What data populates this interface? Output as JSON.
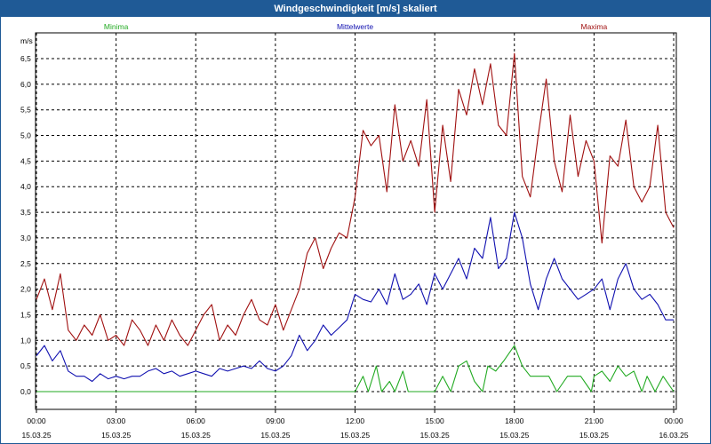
{
  "window": {
    "title": "Windgeschwindigkeit [m/s] skaliert"
  },
  "chart_data": {
    "type": "line",
    "title": "Windgeschwindigkeit [m/s] skaliert",
    "ylabel": "m/s",
    "ylim": [
      -0.2,
      6.8
    ],
    "xlim": [
      0,
      24
    ],
    "grid": true,
    "legend_placement": "top",
    "y_ticks": [
      "0,0",
      "0,5",
      "1,0",
      "1,5",
      "2,0",
      "2,5",
      "3,0",
      "3,5",
      "4,0",
      "4,5",
      "5,0",
      "5,5",
      "6,0",
      "6,5"
    ],
    "x_ticks": [
      {
        "time": "00:00",
        "date": "15.03.25"
      },
      {
        "time": "03:00",
        "date": "15.03.25"
      },
      {
        "time": "06:00",
        "date": "15.03.25"
      },
      {
        "time": "09:00",
        "date": "15.03.25"
      },
      {
        "time": "12:00",
        "date": "15.03.25"
      },
      {
        "time": "15:00",
        "date": "15.03.25"
      },
      {
        "time": "18:00",
        "date": "15.03.25"
      },
      {
        "time": "21:00",
        "date": "15.03.25"
      },
      {
        "time": "00:00",
        "date": "16.03.25"
      }
    ],
    "series": [
      {
        "name": "Minima",
        "color": "#22aa22",
        "x": [
          0,
          12,
          12.3,
          12.5,
          12.8,
          13,
          13.3,
          13.5,
          13.8,
          14,
          14.3,
          14.6,
          15,
          15.3,
          15.6,
          15.9,
          16.2,
          16.5,
          16.8,
          17,
          17.3,
          17.6,
          18,
          18.3,
          18.6,
          19,
          19.3,
          19.6,
          20,
          20.5,
          20.9,
          21,
          21.3,
          21.6,
          21.9,
          22.2,
          22.5,
          22.8,
          23,
          23.3,
          23.6,
          24
        ],
        "values": [
          0,
          0,
          0.3,
          0,
          0.5,
          0,
          0.2,
          0,
          0.4,
          0,
          0,
          0,
          0,
          0.3,
          0,
          0.5,
          0.6,
          0.2,
          0,
          0.5,
          0.4,
          0.6,
          0.9,
          0.5,
          0.3,
          0.3,
          0.3,
          0,
          0.3,
          0.3,
          0,
          0.3,
          0.4,
          0.2,
          0.5,
          0.3,
          0.4,
          0,
          0.3,
          0,
          0.3,
          0
        ]
      },
      {
        "name": "Mittelwerte",
        "color": "#1010b0",
        "x": [
          0,
          0.3,
          0.6,
          0.9,
          1.2,
          1.5,
          1.8,
          2.1,
          2.4,
          2.7,
          3,
          3.3,
          3.6,
          3.9,
          4.2,
          4.5,
          4.8,
          5.1,
          5.4,
          5.7,
          6,
          6.3,
          6.6,
          6.9,
          7.2,
          7.5,
          7.8,
          8.1,
          8.4,
          8.7,
          9,
          9.3,
          9.6,
          9.9,
          10.2,
          10.5,
          10.8,
          11.1,
          11.4,
          11.7,
          12,
          12.3,
          12.6,
          12.9,
          13.2,
          13.5,
          13.8,
          14.1,
          14.4,
          14.7,
          15,
          15.3,
          15.6,
          15.9,
          16.2,
          16.5,
          16.8,
          17.1,
          17.4,
          17.7,
          18,
          18.3,
          18.6,
          18.9,
          19.2,
          19.5,
          19.8,
          20.1,
          20.4,
          20.7,
          21,
          21.3,
          21.6,
          21.9,
          22.2,
          22.5,
          22.8,
          23.1,
          23.4,
          23.7,
          24
        ],
        "values": [
          0.7,
          0.9,
          0.6,
          0.8,
          0.4,
          0.3,
          0.3,
          0.2,
          0.35,
          0.25,
          0.3,
          0.25,
          0.3,
          0.3,
          0.4,
          0.45,
          0.35,
          0.4,
          0.3,
          0.35,
          0.4,
          0.35,
          0.3,
          0.45,
          0.4,
          0.45,
          0.5,
          0.45,
          0.6,
          0.45,
          0.4,
          0.5,
          0.7,
          1.1,
          0.8,
          1.0,
          1.3,
          1.1,
          1.25,
          1.4,
          1.9,
          1.8,
          1.75,
          2.0,
          1.7,
          2.3,
          1.8,
          1.9,
          2.1,
          1.7,
          2.3,
          2.0,
          2.3,
          2.6,
          2.2,
          2.8,
          2.6,
          3.4,
          2.4,
          2.6,
          3.5,
          3.0,
          2.1,
          1.6,
          2.2,
          2.6,
          2.2,
          2.0,
          1.8,
          1.9,
          2.0,
          2.2,
          1.6,
          2.2,
          2.5,
          2.0,
          1.8,
          1.9,
          1.7,
          1.4,
          1.4
        ]
      },
      {
        "name": "Maxima",
        "color": "#a01010",
        "x": [
          0,
          0.3,
          0.6,
          0.9,
          1.2,
          1.5,
          1.8,
          2.1,
          2.4,
          2.7,
          3,
          3.3,
          3.6,
          3.9,
          4.2,
          4.5,
          4.8,
          5.1,
          5.4,
          5.7,
          6,
          6.3,
          6.6,
          6.9,
          7.2,
          7.5,
          7.8,
          8.1,
          8.4,
          8.7,
          9,
          9.3,
          9.6,
          9.9,
          10.2,
          10.5,
          10.8,
          11.1,
          11.4,
          11.7,
          12,
          12.3,
          12.6,
          12.9,
          13.2,
          13.5,
          13.8,
          14.1,
          14.4,
          14.7,
          15,
          15.3,
          15.6,
          15.9,
          16.2,
          16.5,
          16.8,
          17.1,
          17.4,
          17.7,
          18,
          18.3,
          18.6,
          18.9,
          19.2,
          19.5,
          19.8,
          20.1,
          20.4,
          20.7,
          21,
          21.3,
          21.6,
          21.9,
          22.2,
          22.5,
          22.8,
          23.1,
          23.4,
          23.7,
          24
        ],
        "values": [
          1.8,
          2.2,
          1.6,
          2.3,
          1.2,
          1.0,
          1.3,
          1.1,
          1.5,
          1.0,
          1.1,
          0.9,
          1.4,
          1.2,
          0.9,
          1.3,
          1.0,
          1.4,
          1.1,
          0.9,
          1.2,
          1.5,
          1.7,
          1.0,
          1.3,
          1.1,
          1.5,
          1.8,
          1.4,
          1.3,
          1.7,
          1.2,
          1.6,
          2.0,
          2.7,
          3.0,
          2.4,
          2.8,
          3.1,
          3.0,
          3.8,
          5.1,
          4.8,
          5.0,
          3.9,
          5.6,
          4.5,
          4.9,
          4.4,
          5.7,
          3.5,
          5.2,
          4.1,
          5.9,
          5.4,
          6.3,
          5.6,
          6.4,
          5.2,
          5.0,
          6.6,
          4.2,
          3.8,
          5.0,
          6.1,
          4.5,
          3.9,
          5.4,
          4.2,
          4.9,
          4.5,
          2.9,
          4.6,
          4.4,
          5.3,
          4.0,
          3.7,
          4.0,
          5.2,
          3.5,
          3.2
        ]
      }
    ]
  }
}
